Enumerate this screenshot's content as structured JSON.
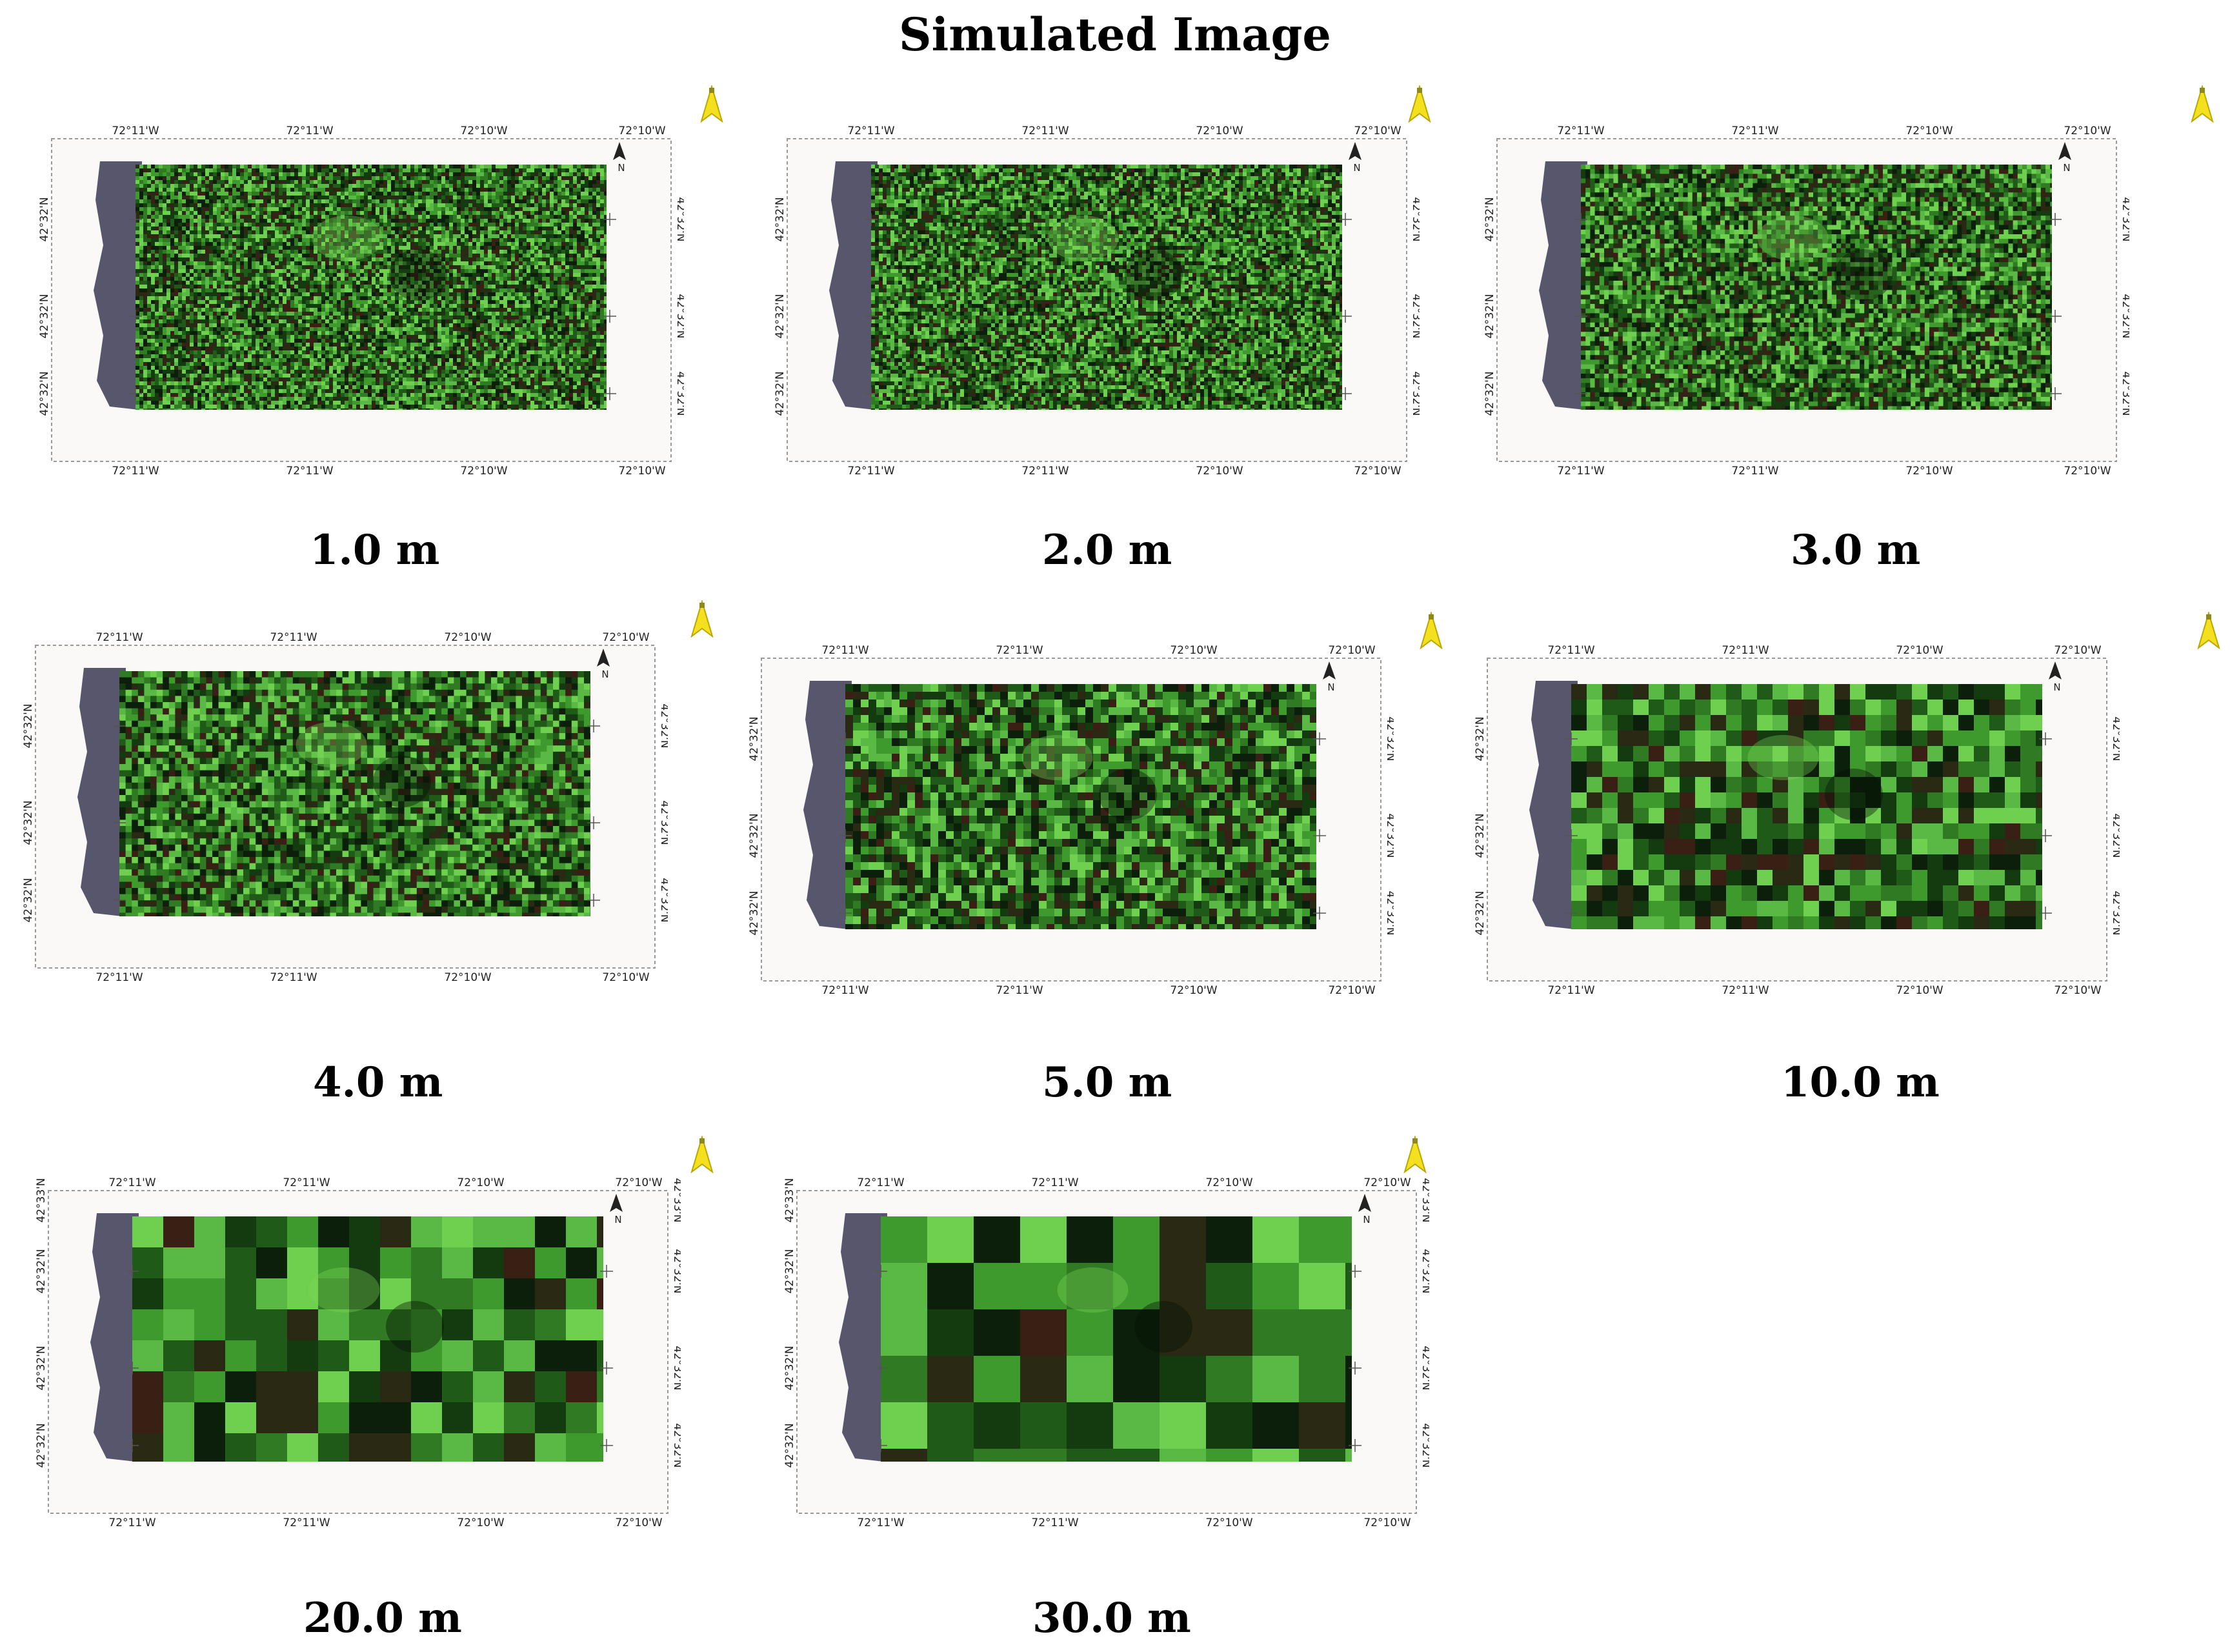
{
  "title": "Simulated Image",
  "panels": [
    {
      "resolution": "1.0 m",
      "pixel_m": 1.0,
      "lon_top": [
        "72°11'W",
        "72°11'W",
        "72°10'W",
        "72°10'W"
      ],
      "lon_bottom": [
        "72°11'W",
        "72°11'W",
        "72°10'W",
        "72°10'W"
      ],
      "lat_left": [
        "42°32'N",
        "42°32'N",
        "42°32'N"
      ],
      "lat_right": [
        "42°32'N",
        "42°32'N",
        "42°32'N"
      ],
      "north": "N"
    },
    {
      "resolution": "2.0 m",
      "pixel_m": 2.0,
      "lon_top": [
        "72°11'W",
        "72°11'W",
        "72°10'W",
        "72°10'W"
      ],
      "lon_bottom": [
        "72°11'W",
        "72°11'W",
        "72°10'W",
        "72°10'W"
      ],
      "lat_left": [
        "42°32'N",
        "42°32'N",
        "42°32'N"
      ],
      "lat_right": [
        "42°32'N",
        "42°32'N",
        "42°32'N"
      ],
      "north": "N"
    },
    {
      "resolution": "3.0 m",
      "pixel_m": 3.0,
      "lon_top": [
        "72°11'W",
        "72°11'W",
        "72°10'W",
        "72°10'W"
      ],
      "lon_bottom": [
        "72°11'W",
        "72°11'W",
        "72°10'W",
        "72°10'W"
      ],
      "lat_left": [
        "42°32'N",
        "42°32'N",
        "42°32'N"
      ],
      "lat_right": [
        "42°32'N",
        "42°32'N",
        "42°32'N"
      ],
      "north": "N"
    },
    {
      "resolution": "4.0 m",
      "pixel_m": 4.0,
      "lon_top": [
        "72°11'W",
        "72°11'W",
        "72°10'W",
        "72°10'W"
      ],
      "lon_bottom": [
        "72°11'W",
        "72°11'W",
        "72°10'W",
        "72°10'W"
      ],
      "lat_left": [
        "42°32'N",
        "42°32'N",
        "42°32'N"
      ],
      "lat_right": [
        "42°32'N",
        "42°32'N",
        "42°32'N"
      ],
      "north": "N"
    },
    {
      "resolution": "5.0 m",
      "pixel_m": 5.0,
      "lon_top": [
        "72°11'W",
        "72°11'W",
        "72°10'W",
        "72°10'W"
      ],
      "lon_bottom": [
        "72°11'W",
        "72°11'W",
        "72°10'W",
        "72°10'W"
      ],
      "lat_left": [
        "42°32'N",
        "42°32'N",
        "42°32'N"
      ],
      "lat_right": [
        "42°32'N",
        "42°32'N",
        "42°32'N"
      ],
      "north": "N"
    },
    {
      "resolution": "10.0 m",
      "pixel_m": 10.0,
      "lon_top": [
        "72°11'W",
        "72°11'W",
        "72°10'W",
        "72°10'W"
      ],
      "lon_bottom": [
        "72°11'W",
        "72°11'W",
        "72°10'W",
        "72°10'W"
      ],
      "lat_left": [
        "42°32'N",
        "42°32'N",
        "42°32'N"
      ],
      "lat_right": [
        "42°32'N",
        "42°32'N",
        "42°32'N"
      ],
      "north": "N"
    },
    {
      "resolution": "20.0 m",
      "pixel_m": 20.0,
      "lon_top": [
        "72°11'W",
        "72°11'W",
        "72°10'W",
        "72°10'W"
      ],
      "lon_bottom": [
        "72°11'W",
        "72°11'W",
        "72°10'W",
        "72°10'W"
      ],
      "lat_left": [
        "42°33'N",
        "42°32'N",
        "42°32'N",
        "42°32'N"
      ],
      "lat_right": [
        "42°33'N",
        "42°32'N",
        "42°32'N",
        "42°32'N"
      ],
      "north": "N"
    },
    {
      "resolution": "30.0 m",
      "pixel_m": 30.0,
      "lon_top": [
        "72°11'W",
        "72°11'W",
        "72°10'W",
        "72°10'W"
      ],
      "lon_bottom": [
        "72°11'W",
        "72°11'W",
        "72°10'W",
        "72°10'W"
      ],
      "lat_left": [
        "42°33'N",
        "42°32'N",
        "42°32'N",
        "42°32'N"
      ],
      "lat_right": [
        "42°33'N",
        "42°32'N",
        "42°32'N",
        "42°32'N"
      ],
      "north": "N"
    }
  ],
  "colors": {
    "canopy_dark": "#0f2a0c",
    "canopy_mid": "#2f7a22",
    "canopy_light": "#6fcf4f",
    "shadow": "#3b3a55",
    "arrow": "#f5e020",
    "axis": "#999999"
  }
}
